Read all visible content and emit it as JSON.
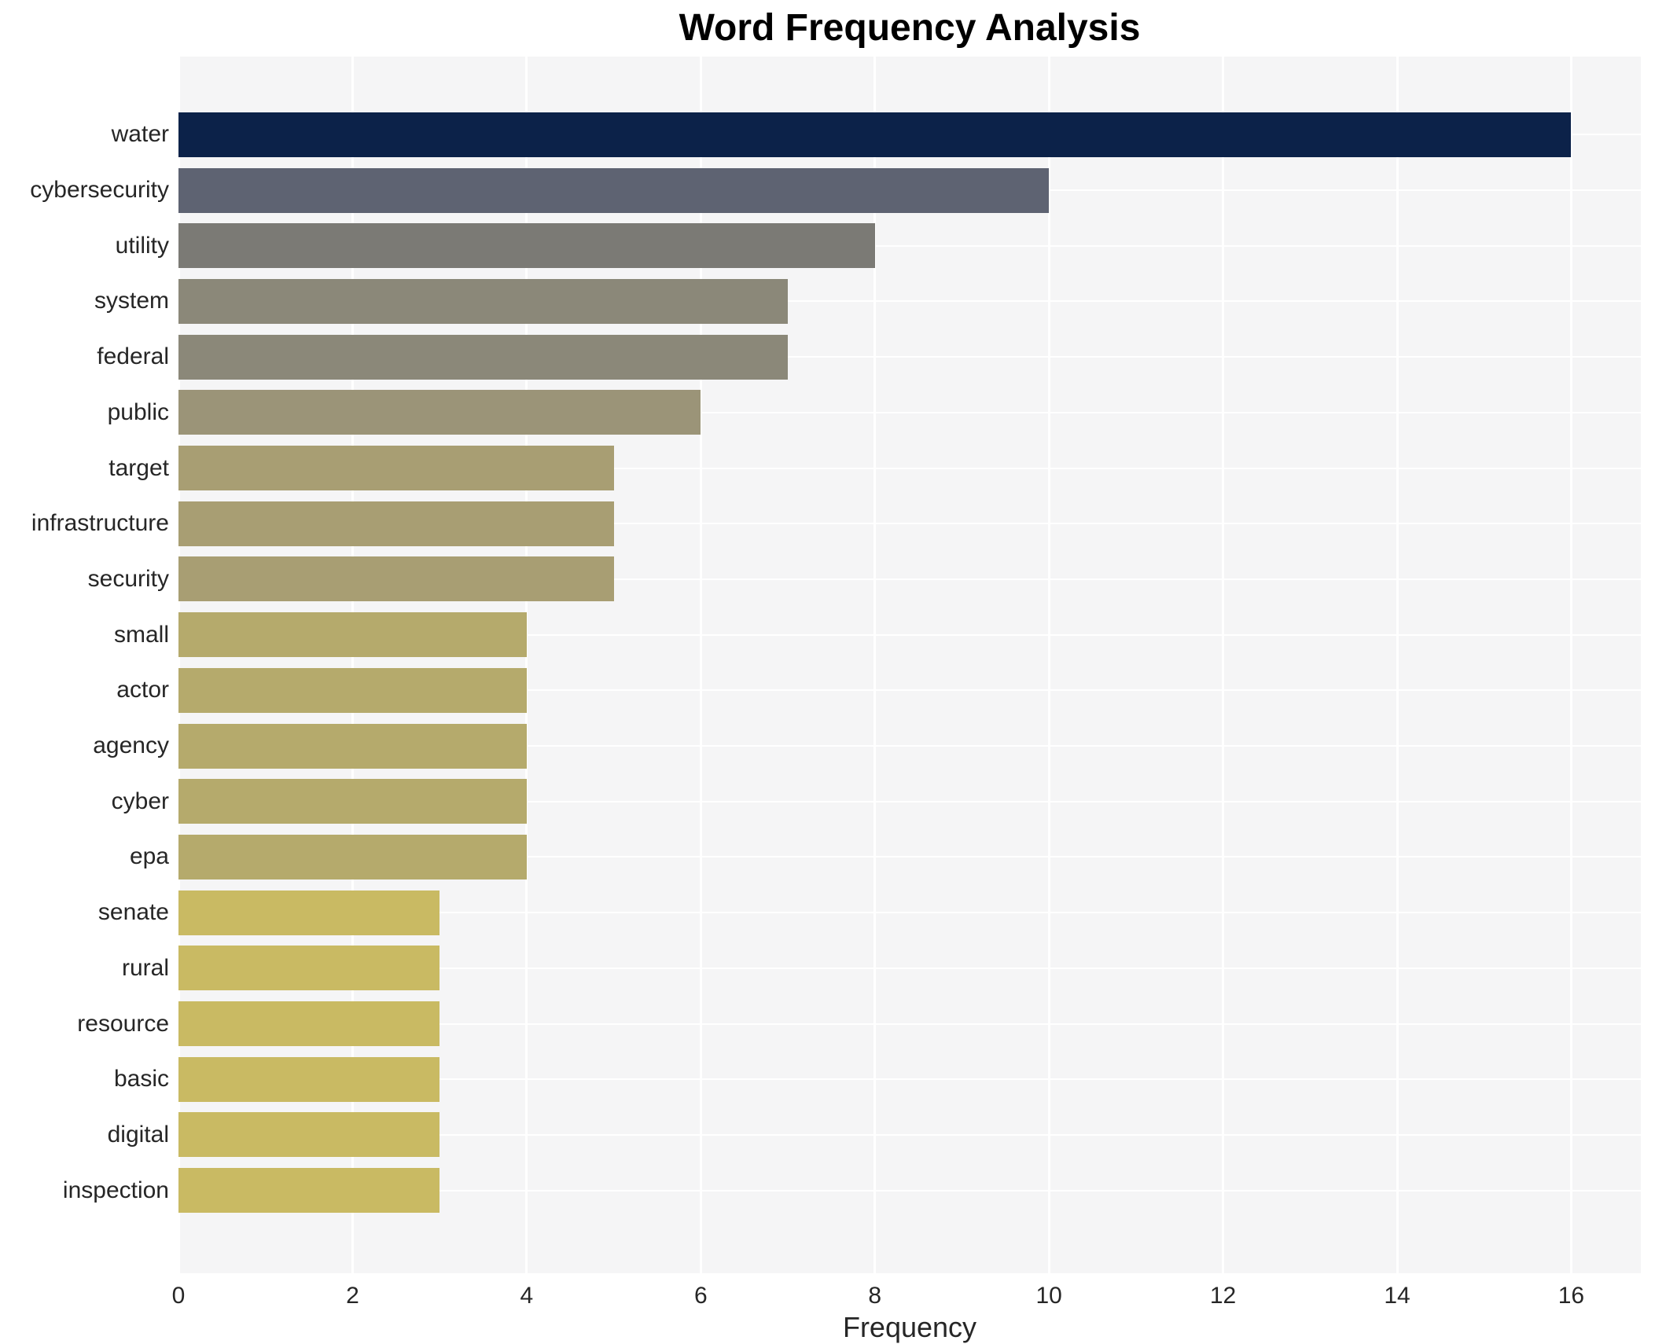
{
  "chart_data": {
    "type": "bar",
    "orientation": "horizontal",
    "title": "Word Frequency Analysis",
    "xlabel": "Frequency",
    "ylabel": "",
    "categories": [
      "water",
      "cybersecurity",
      "utility",
      "system",
      "federal",
      "public",
      "target",
      "infrastructure",
      "security",
      "small",
      "actor",
      "agency",
      "cyber",
      "epa",
      "senate",
      "rural",
      "resource",
      "basic",
      "digital",
      "inspection"
    ],
    "values": [
      16,
      10,
      8,
      7,
      7,
      6,
      5,
      5,
      5,
      4,
      4,
      4,
      4,
      4,
      3,
      3,
      3,
      3,
      3,
      3
    ],
    "bar_colors": [
      "#0c2249",
      "#5e6372",
      "#7b7a75",
      "#8b8879",
      "#8b8879",
      "#9b9478",
      "#a89e73",
      "#a89e73",
      "#a89e73",
      "#b5aa6c",
      "#b5aa6c",
      "#b5aa6c",
      "#b5aa6c",
      "#b5aa6c",
      "#c9ba63",
      "#c9ba63",
      "#c9ba63",
      "#c9ba63",
      "#c9ba63",
      "#c9ba63"
    ],
    "xlim": [
      0,
      16.8
    ],
    "xticks": [
      0,
      2,
      4,
      6,
      8,
      10,
      12,
      14,
      16
    ],
    "grid": true,
    "legend_position": "none",
    "colors": {
      "figure_bg": "#ffffff",
      "plot_bg": "#f5f5f6",
      "grid": "#ffffff",
      "text": "#262626",
      "title": "#000000"
    }
  }
}
